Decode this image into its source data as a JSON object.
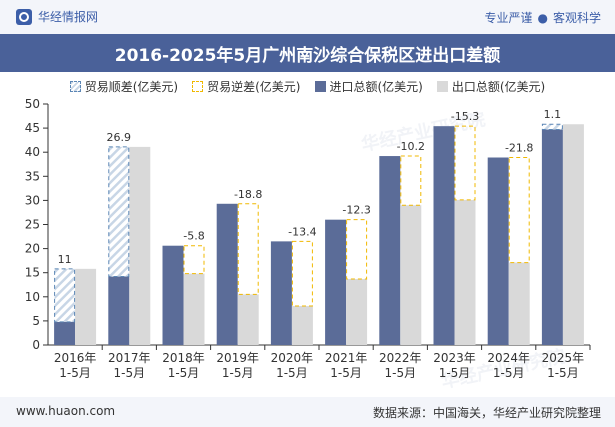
{
  "header": {
    "brand": "华经情报网",
    "tagline_left": "专业严谨",
    "tagline_dot": "●",
    "tagline_right": "客观科学"
  },
  "footer": {
    "url": "www.huaon.com",
    "source": "数据来源：中国海关，华经产业研究院整理"
  },
  "watermark": "华经产业研究院",
  "colors": {
    "title_bg": "#4a6199",
    "import": "#5b6c98",
    "export": "#d9d9d9",
    "surplus_border": "#5b86b5",
    "deficit_border": "#f0b800"
  },
  "chart_data": {
    "type": "bar",
    "title": "2016-2025年5月广州南沙综合保税区进出口差额",
    "categories": [
      "2016年\n1-5月",
      "2017年\n1-5月",
      "2018年\n1-5月",
      "2019年\n1-5月",
      "2020年\n1-5月",
      "2021年\n1-5月",
      "2022年\n1-5月",
      "2023年\n1-5月",
      "2024年\n1-5月",
      "2025年\n1-5月"
    ],
    "ylim": [
      0,
      50
    ],
    "yticks": [
      0,
      5,
      10,
      15,
      20,
      25,
      30,
      35,
      40,
      45,
      50
    ],
    "legend_position": "top",
    "series": [
      {
        "name": "贸易顺差(亿美元)",
        "values": [
          11,
          26.9,
          null,
          null,
          null,
          null,
          null,
          null,
          null,
          1.1
        ]
      },
      {
        "name": "贸易逆差(亿美元)",
        "values": [
          null,
          null,
          -5.8,
          -18.8,
          -13.4,
          -12.3,
          -10.2,
          -15.3,
          -21.8,
          null
        ]
      },
      {
        "name": "进口总额(亿美元)",
        "values": [
          4.8,
          14.2,
          20.6,
          29.3,
          21.5,
          26.0,
          39.2,
          45.4,
          38.9,
          44.7
        ]
      },
      {
        "name": "出口总额(亿美元)",
        "values": [
          15.8,
          41.1,
          14.8,
          10.5,
          8.1,
          13.7,
          29.0,
          30.1,
          17.1,
          45.8
        ]
      }
    ],
    "labels": [
      "11",
      "26.9",
      "-5.8",
      "-18.8",
      "-13.4",
      "-12.3",
      "-10.2",
      "-15.3",
      "-21.8",
      "1.1"
    ]
  }
}
